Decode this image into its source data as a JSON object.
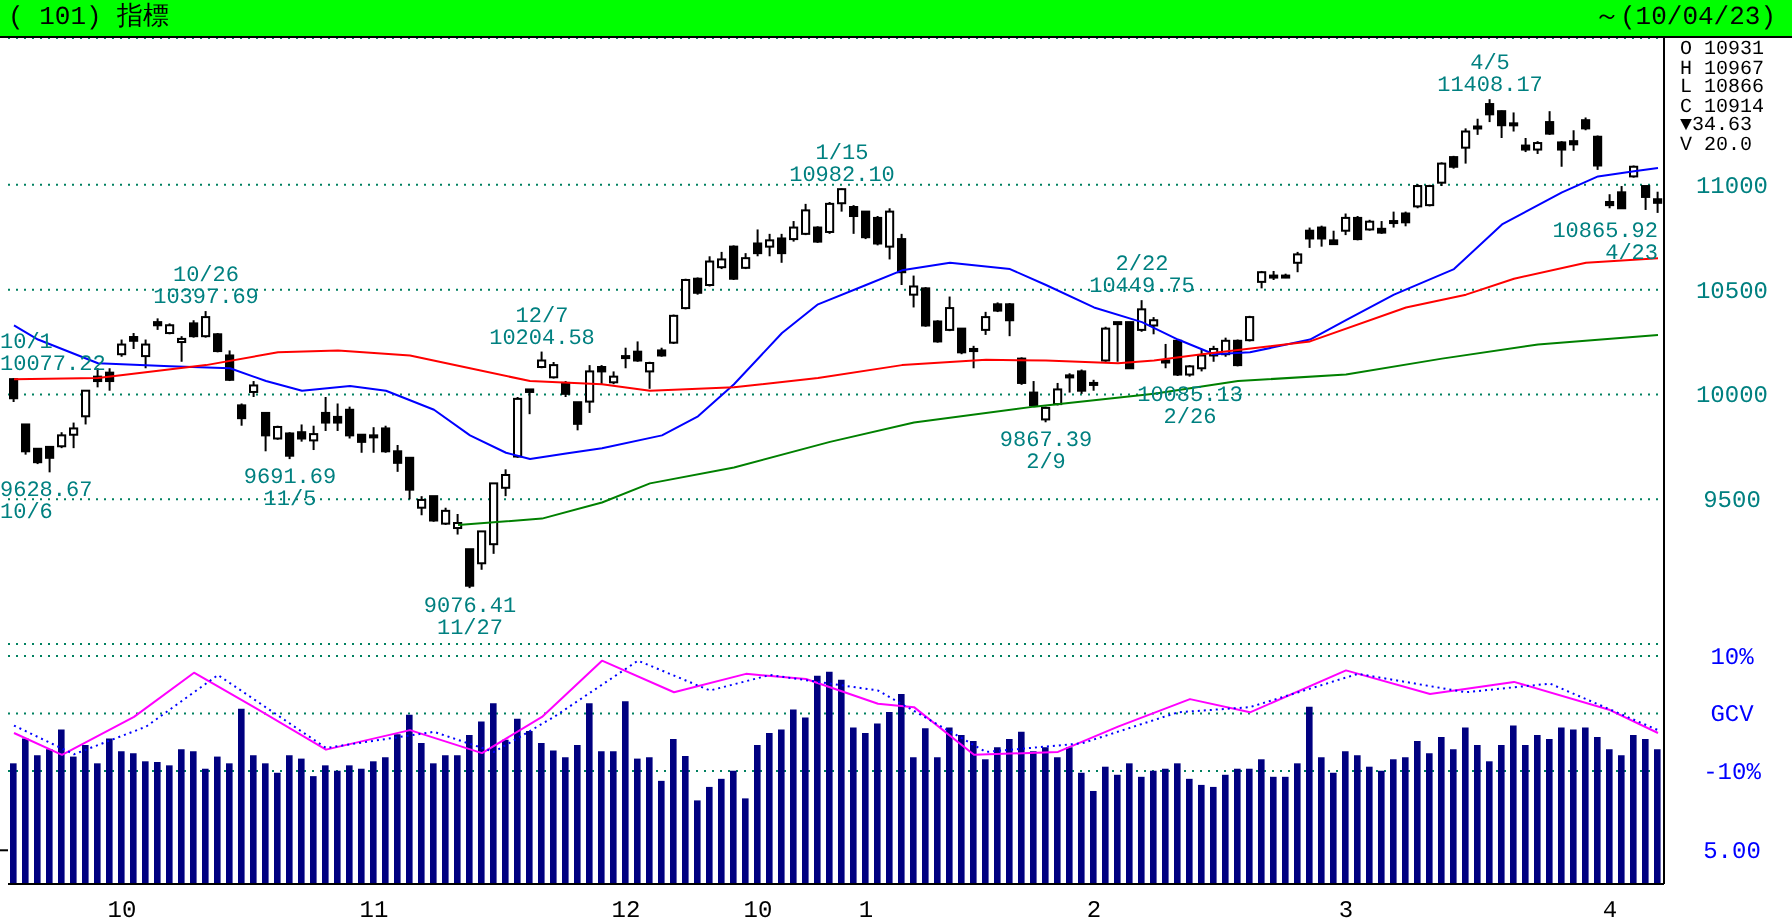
{
  "chart_data": [
    {
      "type": "candlestick",
      "title": "( 101) 指標",
      "subtitle": "～(10/04/23)",
      "tick_labels": "y",
      "grid": "y",
      "ylim": [
        8810,
        11700
      ],
      "yticks": [
        9500,
        10000,
        10500,
        11000
      ],
      "categories": [
        null,
        null,
        null,
        null,
        null,
        null,
        null,
        null,
        null,
        "10",
        null,
        null,
        null,
        null,
        null,
        null,
        null,
        null,
        null,
        null,
        null,
        null,
        null,
        null,
        null,
        null,
        null,
        null,
        null,
        null,
        "11",
        null,
        null,
        null,
        null,
        null,
        null,
        null,
        null,
        null,
        null,
        null,
        null,
        null,
        null,
        null,
        null,
        null,
        null,
        null,
        null,
        "12",
        null,
        null,
        null,
        null,
        null,
        null,
        null,
        null,
        null,
        null,
        "10",
        null,
        null,
        null,
        null,
        null,
        null,
        null,
        null,
        "1",
        null,
        null,
        null,
        null,
        null,
        null,
        null,
        null,
        null,
        null,
        null,
        null,
        null,
        null,
        null,
        null,
        null,
        null,
        "2",
        null,
        null,
        null,
        null,
        null,
        null,
        null,
        null,
        null,
        null,
        null,
        null,
        null,
        null,
        null,
        null,
        null,
        null,
        null,
        null,
        "3",
        null,
        null,
        null,
        null,
        null,
        null,
        null,
        null,
        null,
        null,
        null,
        null,
        null,
        null,
        null,
        null,
        null,
        null,
        null,
        null,
        null,
        "4",
        null,
        null,
        null,
        null
      ],
      "ohlc": [
        [
          10073,
          10077.22,
          9964,
          9982
        ],
        [
          9857,
          9857,
          9713,
          9729
        ],
        [
          9741,
          9741,
          9668,
          9677
        ],
        [
          9750,
          9750,
          9628.67,
          9698
        ],
        [
          9753,
          9820,
          9744,
          9805
        ],
        [
          9808,
          9866,
          9744,
          9838
        ],
        [
          9896,
          10018,
          9857,
          10018
        ],
        [
          10085,
          10125,
          10034,
          10064
        ],
        [
          10104,
          10125,
          10018,
          10064
        ],
        [
          10192,
          10262,
          10180,
          10238
        ],
        [
          10274,
          10293,
          10217,
          10256
        ],
        [
          10183,
          10262,
          10125,
          10238
        ],
        [
          10345,
          10363,
          10308,
          10330
        ],
        [
          10293,
          10339,
          10287,
          10330
        ],
        [
          10250,
          10278,
          10156,
          10265
        ],
        [
          10339,
          10354,
          10271,
          10278
        ],
        [
          10278,
          10397.69,
          10271,
          10369
        ],
        [
          10287,
          10293,
          10201,
          10207
        ],
        [
          10186,
          10210,
          10064,
          10070
        ],
        [
          9948,
          9957,
          9851,
          9887
        ],
        [
          10012,
          10064,
          9988,
          10043
        ],
        [
          9912,
          9912,
          9729,
          9805
        ],
        [
          9790,
          9851,
          9784,
          9845
        ],
        [
          9814,
          9820,
          9691.69,
          9708
        ],
        [
          9820,
          9857,
          9775,
          9790
        ],
        [
          9781,
          9851,
          9735,
          9811
        ],
        [
          9912,
          9988,
          9826,
          9866
        ],
        [
          9893,
          9957,
          9826,
          9866
        ],
        [
          9927,
          9942,
          9790,
          9805
        ],
        [
          9808,
          9808,
          9722,
          9774
        ],
        [
          9805,
          9844,
          9722,
          9802
        ],
        [
          9838,
          9851,
          9722,
          9729
        ],
        [
          9729,
          9759,
          9631,
          9674
        ],
        [
          9698,
          9698,
          9500,
          9546
        ],
        [
          9460,
          9515,
          9424,
          9497
        ],
        [
          9515,
          9515,
          9393,
          9399
        ],
        [
          9384,
          9460,
          9378,
          9445
        ],
        [
          9363,
          9430,
          9332,
          9387
        ],
        [
          9262,
          9262,
          9076.41,
          9088
        ],
        [
          9195,
          9347,
          9164,
          9347
        ],
        [
          9286,
          9576,
          9240,
          9576
        ],
        [
          9555,
          9643,
          9515,
          9616
        ],
        [
          9704,
          9988,
          9698,
          9979
        ],
        [
          10024,
          10024,
          9906,
          10012
        ],
        [
          10131,
          10204.58,
          10125,
          10162
        ],
        [
          10082,
          10155,
          10076,
          10140
        ],
        [
          10055,
          10064,
          9988,
          10003
        ],
        [
          9963,
          9963,
          9829,
          9860
        ],
        [
          9966,
          10140,
          9912,
          10110
        ],
        [
          10131,
          10140,
          10049,
          10110
        ],
        [
          10058,
          10110,
          10049,
          10085
        ],
        [
          10183,
          10223,
          10125,
          10177
        ],
        [
          10204,
          10253,
          10156,
          10162
        ],
        [
          10110,
          10156,
          10027,
          10150
        ],
        [
          10210,
          10223,
          10180,
          10186
        ],
        [
          10247,
          10381,
          10241,
          10375
        ],
        [
          10412,
          10552,
          10406,
          10546
        ],
        [
          10552,
          10558,
          10476,
          10485
        ],
        [
          10522,
          10659,
          10515,
          10634
        ],
        [
          10607,
          10680,
          10598,
          10644
        ],
        [
          10705,
          10711,
          10546,
          10552
        ],
        [
          10604,
          10674,
          10598,
          10650
        ],
        [
          10720,
          10787,
          10659,
          10674
        ],
        [
          10705,
          10766,
          10659,
          10735
        ],
        [
          10744,
          10766,
          10628,
          10674
        ],
        [
          10741,
          10827,
          10729,
          10796
        ],
        [
          10766,
          10909,
          10760,
          10878
        ],
        [
          10796,
          10802,
          10723,
          10729
        ],
        [
          10775,
          10918,
          10766,
          10909
        ],
        [
          10912,
          10982.1,
          10872,
          10979
        ],
        [
          10894,
          10903,
          10766,
          10851
        ],
        [
          10872,
          10872,
          10741,
          10750
        ],
        [
          10842,
          10851,
          10711,
          10720
        ],
        [
          10705,
          10888,
          10644,
          10872
        ],
        [
          10741,
          10766,
          10522,
          10583
        ],
        [
          10476,
          10567,
          10415,
          10515
        ],
        [
          10506,
          10512,
          10323,
          10329
        ],
        [
          10348,
          10354,
          10247,
          10253
        ],
        [
          10308,
          10467,
          10302,
          10412
        ],
        [
          10314,
          10314,
          10192,
          10201
        ],
        [
          10217,
          10232,
          10125,
          10207
        ],
        [
          10308,
          10394,
          10284,
          10369
        ],
        [
          10430,
          10439,
          10393,
          10400
        ],
        [
          10430,
          10436,
          10278,
          10354
        ],
        [
          10171,
          10177,
          10046,
          10055
        ],
        [
          10009,
          10064,
          9942,
          9948
        ],
        [
          9881,
          9942,
          9867.39,
          9936
        ],
        [
          9954,
          10055,
          9948,
          10024
        ],
        [
          10091,
          10101,
          10009,
          10082
        ],
        [
          10110,
          10119,
          10003,
          10018
        ],
        [
          10055,
          10070,
          10018,
          10049
        ],
        [
          10162,
          10323,
          10156,
          10314
        ],
        [
          10345,
          10345,
          10156,
          10339
        ],
        [
          10345,
          10345,
          10125,
          10125
        ],
        [
          10308,
          10449.75,
          10299,
          10406
        ],
        [
          10329,
          10369,
          10287,
          10354
        ],
        [
          10162,
          10241,
          10125,
          10156
        ],
        [
          10256,
          10262,
          10088,
          10095
        ],
        [
          10095,
          10140,
          10085.13,
          10134
        ],
        [
          10125,
          10217,
          10110,
          10186
        ],
        [
          10186,
          10232,
          10156,
          10217
        ],
        [
          10192,
          10271,
          10180,
          10256
        ],
        [
          10256,
          10262,
          10134,
          10140
        ],
        [
          10259,
          10375,
          10253,
          10369
        ],
        [
          10537,
          10589,
          10506,
          10583
        ],
        [
          10567,
          10589,
          10546,
          10567
        ],
        [
          10567,
          10576,
          10555,
          10561
        ],
        [
          10628,
          10680,
          10583,
          10668
        ],
        [
          10781,
          10796,
          10699,
          10744
        ],
        [
          10796,
          10805,
          10705,
          10744
        ],
        [
          10735,
          10781,
          10717,
          10717
        ],
        [
          10781,
          10863,
          10760,
          10842
        ],
        [
          10842,
          10851,
          10735,
          10741
        ],
        [
          10787,
          10833,
          10781,
          10824
        ],
        [
          10790,
          10827,
          10766,
          10772
        ],
        [
          10827,
          10872,
          10796,
          10821
        ],
        [
          10863,
          10872,
          10802,
          10821
        ],
        [
          10897,
          11003,
          10888,
          10994
        ],
        [
          10903,
          11000,
          10897,
          10994
        ],
        [
          11010,
          11107,
          10994,
          11101
        ],
        [
          11132,
          11138,
          11077,
          11086
        ],
        [
          11177,
          11269,
          11101,
          11254
        ],
        [
          11278,
          11315,
          11238,
          11272
        ],
        [
          11385,
          11408.17,
          11299,
          11336
        ],
        [
          11351,
          11354,
          11223,
          11284
        ],
        [
          11293,
          11345,
          11254,
          11287
        ],
        [
          11187,
          11223,
          11156,
          11168
        ],
        [
          11168,
          11208,
          11147,
          11199
        ],
        [
          11299,
          11351,
          11238,
          11244
        ],
        [
          11202,
          11208,
          11086,
          11168
        ],
        [
          11208,
          11260,
          11162,
          11193
        ],
        [
          11308,
          11321,
          11260,
          11269
        ],
        [
          11229,
          11235,
          11071,
          11092
        ],
        [
          10918,
          10955,
          10888,
          10903
        ],
        [
          10964,
          10994,
          10885,
          10888
        ],
        [
          11040,
          11092,
          11034,
          11086
        ],
        [
          10994,
          10994,
          10880,
          10942
        ],
        [
          10931,
          10967,
          10865.92,
          10914
        ]
      ],
      "series": [
        {
          "type": "line",
          "color": "#0000ff",
          "values": [
            10329,
            null,
            10262,
            null,
            null,
            null,
            null,
            10149,
            null,
            null,
            null,
            null,
            null,
            10134,
            null,
            null,
            null,
            null,
            10125,
            null,
            null,
            10064,
            null,
            null,
            10018,
            null,
            null,
            null,
            10040,
            null,
            null,
            10018,
            null,
            null,
            null,
            9927,
            null,
            null,
            9805,
            null,
            null,
            9722,
            null,
            9692,
            null,
            null,
            9719,
            null,
            null,
            9744,
            null,
            null,
            null,
            null,
            9805,
            null,
            null,
            9896,
            null,
            null,
            10049,
            null,
            null,
            null,
            10293,
            null,
            null,
            10430,
            null,
            null,
            null,
            10522,
            null,
            null,
            10592,
            null,
            null,
            null,
            10628,
            null,
            null,
            null,
            null,
            10598,
            null,
            null,
            10522,
            null,
            null,
            null,
            10415,
            null,
            null,
            null,
            10345,
            null,
            null,
            10262,
            null,
            null,
            10192,
            null,
            null,
            10201,
            null,
            null,
            null,
            null,
            10262,
            null,
            null,
            10354,
            null,
            null,
            null,
            10476,
            null,
            null,
            null,
            null,
            10598,
            null,
            null,
            null,
            10811,
            null,
            null,
            null,
            null,
            10964,
            null,
            null,
            11040,
            null,
            null,
            11064,
            null,
            11080
          ]
        },
        {
          "type": "line",
          "color": "#ff0000",
          "values": [
            10073,
            null,
            null,
            null,
            null,
            null,
            null,
            10079,
            null,
            null,
            null,
            null,
            null,
            null,
            null,
            null,
            10140,
            null,
            null,
            null,
            null,
            null,
            10201,
            null,
            null,
            null,
            null,
            10210,
            null,
            null,
            null,
            null,
            null,
            10186,
            null,
            null,
            null,
            null,
            10125,
            null,
            null,
            null,
            null,
            10064,
            null,
            null,
            null,
            null,
            null,
            10049,
            null,
            null,
            null,
            10018,
            null,
            null,
            null,
            null,
            null,
            null,
            10034,
            null,
            null,
            null,
            null,
            null,
            null,
            10079,
            null,
            null,
            null,
            null,
            null,
            null,
            10140,
            null,
            null,
            null,
            null,
            null,
            null,
            10165,
            null,
            null,
            null,
            null,
            10162,
            null,
            null,
            null,
            null,
            null,
            10149,
            null,
            null,
            10162,
            null,
            null,
            null,
            10192,
            null,
            null,
            null,
            null,
            null,
            null,
            null,
            null,
            10253,
            null,
            null,
            null,
            null,
            null,
            null,
            null,
            10415,
            null,
            null,
            null,
            null,
            10476,
            null,
            null,
            null,
            10552,
            null,
            null,
            null,
            null,
            null,
            10628,
            null,
            null,
            null,
            null,
            null,
            10650
          ]
        },
        {
          "type": "line",
          "color": "#008000",
          "values": [
            null,
            null,
            null,
            null,
            null,
            null,
            null,
            null,
            null,
            null,
            null,
            null,
            null,
            null,
            null,
            null,
            null,
            null,
            null,
            null,
            null,
            null,
            null,
            null,
            null,
            null,
            null,
            null,
            null,
            null,
            null,
            null,
            null,
            null,
            null,
            null,
            null,
            9378,
            null,
            null,
            null,
            null,
            null,
            null,
            9408,
            null,
            null,
            null,
            null,
            9485,
            null,
            null,
            null,
            9576,
            null,
            null,
            null,
            null,
            null,
            null,
            9652,
            null,
            null,
            null,
            null,
            null,
            null,
            null,
            9774,
            null,
            null,
            null,
            null,
            null,
            null,
            9866,
            null,
            null,
            null,
            null,
            null,
            null,
            null,
            null,
            null,
            9942,
            null,
            null,
            null,
            null,
            null,
            null,
            null,
            null,
            null,
            10003,
            null,
            null,
            null,
            null,
            null,
            null,
            10064,
            null,
            null,
            null,
            null,
            null,
            null,
            null,
            null,
            10095,
            null,
            null,
            null,
            null,
            null,
            null,
            null,
            10171,
            null,
            null,
            null,
            null,
            null,
            null,
            null,
            10238,
            null,
            null,
            null,
            null,
            null,
            null,
            null,
            null,
            null,
            10284
          ]
        }
      ],
      "annotations": [
        {
          "text": "10/1\n10077.22",
          "y": 10077.22
        },
        {
          "text": "9628.67\n10/6",
          "y": 9628.67
        },
        {
          "text": "10/26\n10397.69",
          "y": 10397.69
        },
        {
          "text": "9691.69\n11/5",
          "y": 9691.69
        },
        {
          "text": "9076.41\n11/27",
          "y": 9076.41
        },
        {
          "text": "12/7\n10204.58",
          "y": 10204.58
        },
        {
          "text": "1/15\n10982.10",
          "y": 10982.1
        },
        {
          "text": "9867.39\n2/9",
          "y": 9867.39
        },
        {
          "text": "2/22\n10449.75",
          "y": 10449.75
        },
        {
          "text": "10085.13\n2/26",
          "y": 10085.13
        },
        {
          "text": "4/5\n11408.17",
          "y": 11408.17
        },
        {
          "text": "10865.92\n4/23",
          "y": 10865.92
        },
        "O 10931",
        "H 10967",
        "L 10866",
        "C 10914",
        "▼34.63",
        "V 20.0"
      ]
    },
    {
      "type": "bar",
      "grid": "y",
      "ylim": [
        -29.7,
        12.1
      ],
      "yticks": [
        {
          "value": 10,
          "label": "10%"
        },
        {
          "value": 0,
          "label": "GCV"
        },
        {
          "value": -10,
          "label": "-10%"
        }
      ],
      "y2lim": [
        0,
        35.6
      ],
      "y2ticks": [
        {
          "value": 5,
          "label": "5.00"
        }
      ],
      "categories": [
        null,
        null,
        null,
        null,
        null,
        null,
        null,
        null,
        null,
        "10",
        null,
        null,
        null,
        null,
        null,
        null,
        null,
        null,
        null,
        null,
        null,
        null,
        null,
        null,
        null,
        null,
        null,
        null,
        null,
        null,
        "11",
        null,
        null,
        null,
        null,
        null,
        null,
        null,
        null,
        null,
        null,
        null,
        null,
        null,
        null,
        null,
        null,
        null,
        null,
        null,
        null,
        "12",
        null,
        null,
        null,
        null,
        null,
        null,
        null,
        null,
        null,
        null,
        "10",
        null,
        null,
        null,
        null,
        null,
        null,
        null,
        null,
        "1",
        null,
        null,
        null,
        null,
        null,
        null,
        null,
        null,
        null,
        null,
        null,
        null,
        null,
        null,
        null,
        null,
        null,
        null,
        "2",
        null,
        null,
        null,
        null,
        null,
        null,
        null,
        null,
        null,
        null,
        null,
        null,
        null,
        null,
        null,
        null,
        null,
        null,
        null,
        null,
        "3",
        null,
        null,
        null,
        null,
        null,
        null,
        null,
        null,
        null,
        null,
        null,
        null,
        null,
        null,
        null,
        null,
        null,
        null,
        null,
        null,
        null,
        "4",
        null,
        null,
        null,
        null
      ],
      "series": [
        {
          "type": "bar",
          "axis": "y2",
          "color": "#000080",
          "values": [
            17.9,
            21.6,
            19.1,
            20.0,
            22.9,
            18.9,
            20.6,
            17.9,
            21.6,
            19.7,
            19.4,
            18.2,
            18.1,
            17.6,
            20.0,
            19.7,
            17.1,
            18.9,
            17.9,
            26.0,
            19.1,
            17.9,
            16.5,
            19.1,
            18.6,
            16.0,
            17.6,
            16.8,
            17.6,
            17.1,
            18.2,
            18.8,
            22.2,
            25.1,
            20.9,
            17.9,
            19.1,
            19.1,
            22.1,
            24.1,
            26.8,
            21.4,
            24.5,
            22.7,
            20.9,
            19.8,
            18.8,
            20.6,
            26.8,
            19.7,
            19.7,
            27.1,
            18.6,
            18.8,
            15.3,
            21.5,
            19.0,
            12.4,
            14.4,
            15.6,
            16.8,
            12.7,
            20.6,
            22.4,
            22.9,
            25.9,
            24.7,
            30.9,
            31.5,
            30.3,
            23.2,
            22.4,
            23.8,
            25.5,
            28.2,
            18.8,
            23.1,
            18.8,
            23.2,
            22.1,
            21.2,
            18.5,
            20.3,
            21.5,
            22.6,
            19.7,
            20.3,
            18.8,
            20.3,
            16.5,
            13.8,
            17.4,
            16.2,
            17.9,
            15.9,
            16.8,
            17.1,
            17.9,
            15.6,
            14.7,
            14.4,
            16.2,
            17.1,
            17.1,
            18.5,
            15.9,
            15.9,
            17.9,
            26.3,
            18.8,
            16.5,
            19.7,
            19.1,
            17.4,
            16.8,
            18.5,
            18.8,
            21.2,
            19.4,
            21.8,
            20.0,
            23.2,
            20.6,
            18.2,
            20.6,
            23.5,
            20.6,
            22.1,
            21.5,
            23.2,
            22.9,
            23.2,
            21.8,
            20.0,
            19.1,
            22.1,
            21.5,
            20.0
          ]
        },
        {
          "type": "line",
          "color": "#ff00ff",
          "values": [
            -3.4,
            null,
            null,
            null,
            -7.2,
            null,
            null,
            null,
            null,
            null,
            -0.6,
            null,
            null,
            null,
            null,
            7.1,
            null,
            null,
            null,
            null,
            1.1,
            null,
            null,
            null,
            null,
            null,
            -6.3,
            null,
            null,
            null,
            null,
            null,
            null,
            -2.9,
            null,
            null,
            null,
            null,
            null,
            -6.9,
            null,
            null,
            null,
            null,
            -0.6,
            null,
            null,
            null,
            null,
            9.2,
            null,
            null,
            null,
            null,
            null,
            3.7,
            null,
            null,
            null,
            null,
            null,
            6.9,
            null,
            null,
            null,
            null,
            6.0,
            null,
            null,
            null,
            null,
            null,
            1.7,
            null,
            null,
            1.1,
            null,
            null,
            null,
            null,
            -7.2,
            null,
            null,
            null,
            null,
            null,
            null,
            -6.7,
            null,
            null,
            null,
            null,
            -2.3,
            null,
            null,
            null,
            null,
            null,
            2.5,
            null,
            null,
            null,
            null,
            0.2,
            null,
            null,
            null,
            null,
            null,
            null,
            null,
            7.5,
            null,
            null,
            null,
            null,
            null,
            null,
            3.4,
            null,
            null,
            null,
            null,
            null,
            null,
            5.5,
            null,
            null,
            null,
            null,
            null,
            null,
            null,
            0.6,
            null,
            null,
            null,
            -3.4
          ]
        },
        {
          "type": "line",
          "color": "#0000ff",
          "line_style": "dotted",
          "values": [
            -2.1,
            null,
            null,
            null,
            null,
            -7.1,
            null,
            null,
            null,
            null,
            null,
            -2.3,
            null,
            null,
            null,
            null,
            null,
            6.7,
            null,
            null,
            null,
            null,
            null,
            null,
            null,
            null,
            -6.0,
            null,
            null,
            null,
            null,
            null,
            null,
            null,
            null,
            -3.2,
            null,
            null,
            null,
            null,
            -6.7,
            null,
            null,
            null,
            null,
            -0.6,
            null,
            null,
            null,
            null,
            null,
            null,
            9.2,
            null,
            null,
            null,
            null,
            null,
            4.0,
            null,
            null,
            null,
            null,
            6.7,
            null,
            null,
            null,
            null,
            null,
            null,
            null,
            null,
            4.0,
            null,
            null,
            null,
            null,
            null,
            null,
            null,
            null,
            -6.7,
            null,
            null,
            null,
            null,
            null,
            null,
            null,
            -5.2,
            null,
            null,
            null,
            null,
            null,
            null,
            null,
            0.2,
            null,
            null,
            null,
            null,
            null,
            1.1,
            null,
            null,
            null,
            null,
            null,
            null,
            null,
            null,
            6.9,
            null,
            null,
            null,
            null,
            null,
            null,
            null,
            null,
            3.7,
            null,
            null,
            null,
            null,
            null,
            null,
            5.2,
            null,
            null,
            null,
            null,
            null,
            null,
            null,
            null,
            -2.9
          ]
        }
      ]
    }
  ]
}
